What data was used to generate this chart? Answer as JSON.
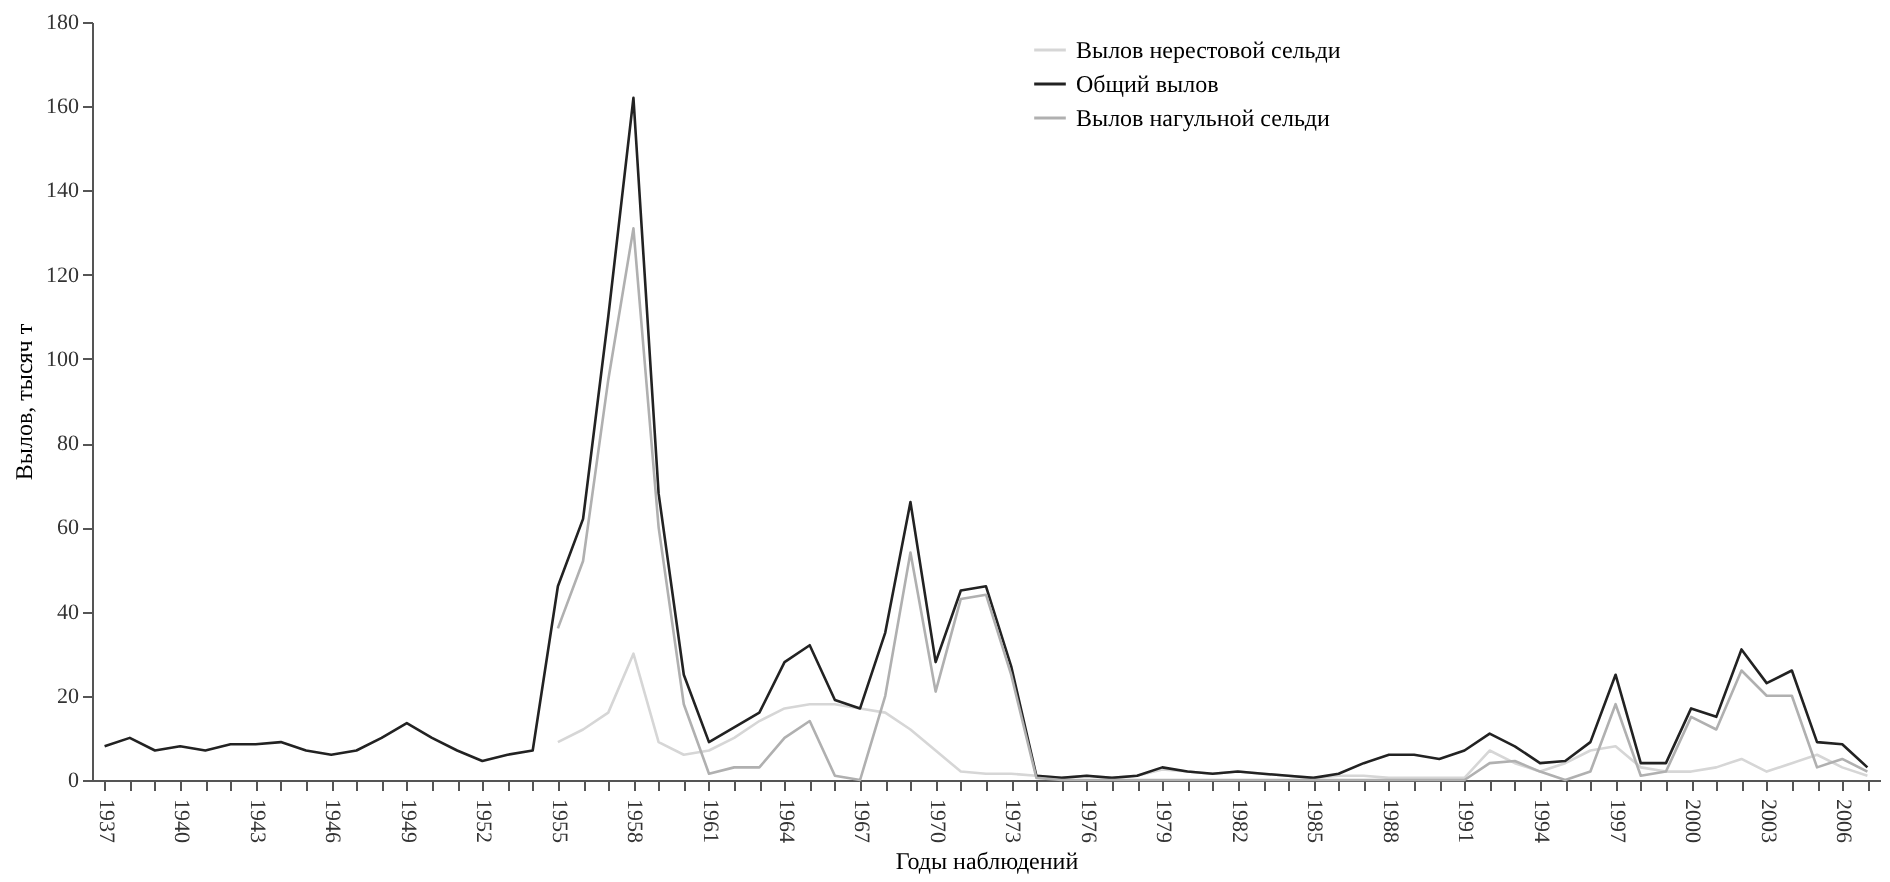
{
  "chart_data": {
    "type": "line",
    "xlabel": "Годы наблюдений",
    "ylabel": "Вылов, тысяч т",
    "x": [
      1937,
      1938,
      1939,
      1940,
      1941,
      1942,
      1943,
      1944,
      1945,
      1946,
      1947,
      1948,
      1949,
      1950,
      1951,
      1952,
      1953,
      1954,
      1955,
      1956,
      1957,
      1958,
      1959,
      1960,
      1961,
      1962,
      1963,
      1964,
      1965,
      1966,
      1967,
      1968,
      1969,
      1970,
      1971,
      1972,
      1973,
      1974,
      1975,
      1976,
      1977,
      1978,
      1979,
      1980,
      1981,
      1982,
      1983,
      1984,
      1985,
      1986,
      1987,
      1988,
      1989,
      1990,
      1991,
      1992,
      1993,
      1994,
      1995,
      1996,
      1997,
      1998,
      1999,
      2000,
      2001,
      2002,
      2003,
      2004,
      2005,
      2006,
      2007
    ],
    "series": [
      {
        "name": "Вылов нерестовой сельди",
        "color": "#d6d6d6",
        "values": [
          null,
          null,
          null,
          null,
          null,
          null,
          null,
          null,
          null,
          null,
          null,
          null,
          null,
          null,
          null,
          null,
          null,
          null,
          9,
          12,
          16,
          30,
          9,
          6,
          7,
          10,
          14,
          17,
          18,
          18,
          17,
          16,
          12,
          7,
          2,
          1.5,
          1.5,
          1,
          0.5,
          1,
          0.5,
          1,
          2.5,
          2,
          1.5,
          2,
          1.5,
          1,
          0.5,
          1,
          1,
          0.5,
          0.5,
          0.5,
          0.5,
          7,
          4,
          2,
          4,
          7,
          8,
          3,
          2,
          2,
          3,
          5,
          2,
          4,
          6,
          3,
          1
        ]
      },
      {
        "name": "Общий вылов",
        "color": "#222222",
        "values": [
          8,
          10,
          7,
          8,
          7,
          8.5,
          8.5,
          9,
          7,
          6,
          7,
          10,
          13.5,
          10,
          7,
          4.5,
          6,
          7,
          46,
          62,
          110,
          162,
          68,
          25,
          9,
          12.5,
          16,
          28,
          32,
          19,
          17,
          35,
          66,
          28,
          45,
          46,
          27,
          1,
          0.5,
          1,
          0.5,
          1,
          3,
          2,
          1.5,
          2,
          1.5,
          1,
          0.5,
          1.5,
          4,
          6,
          6,
          5,
          7,
          11,
          8,
          4,
          4.5,
          9,
          25,
          4,
          4,
          17,
          15,
          31,
          23,
          26,
          9,
          8.5,
          3
        ]
      },
      {
        "name": "Вылов нагульной сельди",
        "color": "#b0b0b0",
        "values": [
          null,
          null,
          null,
          null,
          null,
          null,
          null,
          null,
          null,
          null,
          null,
          null,
          null,
          null,
          null,
          null,
          null,
          null,
          36,
          52,
          95,
          131,
          60,
          18,
          1.5,
          3,
          3,
          10,
          14,
          1,
          0,
          20,
          54,
          21,
          43,
          44,
          25,
          0.5,
          0,
          0,
          0,
          0,
          0,
          0,
          0,
          0,
          0,
          0,
          0,
          0,
          0,
          0,
          0,
          0,
          0,
          4,
          4.5,
          2,
          0,
          2,
          18,
          1,
          2,
          15,
          12,
          26,
          20,
          20,
          3,
          5,
          2
        ]
      }
    ],
    "xlim": [
      1936.5,
      2007.5
    ],
    "xticks": [
      1937,
      {
        "value": 1938,
        "label": null
      },
      {
        "value": 1939,
        "label": null
      },
      1940,
      {
        "value": 1941,
        "label": null
      },
      {
        "value": 1942,
        "label": null
      },
      1943,
      {
        "value": 1944,
        "label": null
      },
      {
        "value": 1945,
        "label": null
      },
      1946,
      {
        "value": 1947,
        "label": null
      },
      {
        "value": 1948,
        "label": null
      },
      1949,
      {
        "value": 1950,
        "label": null
      },
      {
        "value": 1951,
        "label": null
      },
      1952,
      {
        "value": 1953,
        "label": null
      },
      {
        "value": 1954,
        "label": null
      },
      1955,
      {
        "value": 1956,
        "label": null
      },
      {
        "value": 1957,
        "label": null
      },
      1958,
      {
        "value": 1959,
        "label": null
      },
      {
        "value": 1960,
        "label": null
      },
      1961,
      {
        "value": 1962,
        "label": null
      },
      {
        "value": 1963,
        "label": null
      },
      1964,
      {
        "value": 1965,
        "label": null
      },
      {
        "value": 1966,
        "label": null
      },
      1967,
      {
        "value": 1968,
        "label": null
      },
      {
        "value": 1969,
        "label": null
      },
      1970,
      {
        "value": 1971,
        "label": null
      },
      {
        "value": 1972,
        "label": null
      },
      1973,
      {
        "value": 1974,
        "label": null
      },
      {
        "value": 1975,
        "label": null
      },
      1976,
      {
        "value": 1977,
        "label": null
      },
      {
        "value": 1978,
        "label": null
      },
      1979,
      {
        "value": 1980,
        "label": null
      },
      {
        "value": 1981,
        "label": null
      },
      1982,
      {
        "value": 1983,
        "label": null
      },
      {
        "value": 1984,
        "label": null
      },
      1985,
      {
        "value": 1986,
        "label": null
      },
      {
        "value": 1987,
        "label": null
      },
      1988,
      {
        "value": 1989,
        "label": null
      },
      {
        "value": 1990,
        "label": null
      },
      1991,
      {
        "value": 1992,
        "label": null
      },
      {
        "value": 1993,
        "label": null
      },
      1994,
      {
        "value": 1995,
        "label": null
      },
      {
        "value": 1996,
        "label": null
      },
      1997,
      {
        "value": 1998,
        "label": null
      },
      {
        "value": 1999,
        "label": null
      },
      2000,
      {
        "value": 2001,
        "label": null
      },
      {
        "value": 2002,
        "label": null
      },
      2003,
      {
        "value": 2004,
        "label": null
      },
      {
        "value": 2005,
        "label": null
      },
      2006,
      {
        "value": 2007,
        "label": null
      }
    ],
    "ylim": [
      0,
      180
    ],
    "yticks": [
      0,
      20,
      40,
      60,
      80,
      100,
      120,
      140,
      160,
      180
    ],
    "grid": false,
    "legend": "top",
    "marker": "none",
    "line_style": "solid"
  }
}
